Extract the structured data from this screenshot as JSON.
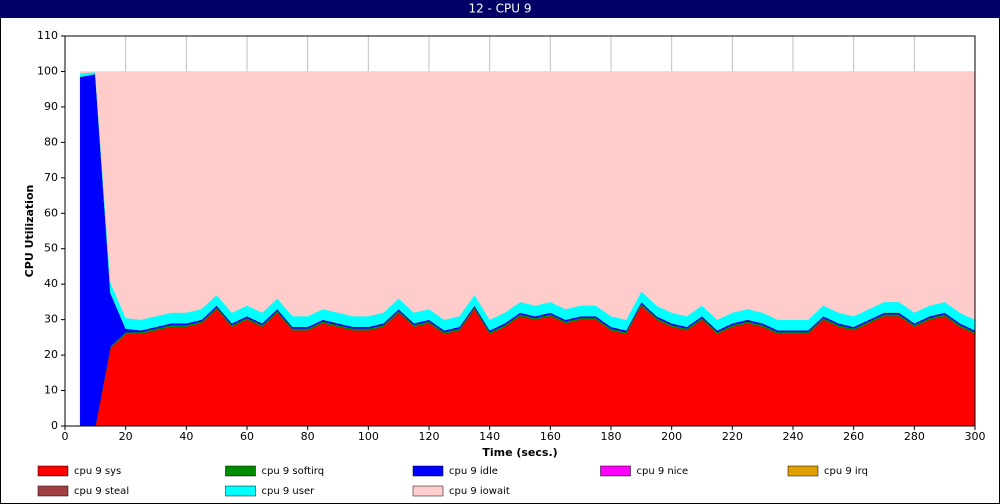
{
  "chart_data": {
    "type": "stacked-area",
    "title": "12 - CPU 9",
    "x_label": "Time (secs.)",
    "y_label": "CPU Utilization",
    "x": [
      5,
      10,
      15,
      20,
      25,
      30,
      35,
      40,
      45,
      50,
      55,
      60,
      65,
      70,
      75,
      80,
      85,
      90,
      95,
      100,
      105,
      110,
      115,
      120,
      125,
      130,
      135,
      140,
      145,
      150,
      155,
      160,
      165,
      170,
      175,
      180,
      185,
      190,
      195,
      200,
      205,
      210,
      215,
      220,
      225,
      230,
      235,
      240,
      245,
      250,
      255,
      260,
      265,
      270,
      275,
      280,
      285,
      290,
      295,
      300
    ],
    "xlim": [
      0,
      300
    ],
    "xticks": [
      0,
      20,
      40,
      60,
      80,
      100,
      120,
      140,
      160,
      180,
      200,
      220,
      240,
      260,
      280,
      300
    ],
    "ylim": [
      0,
      110
    ],
    "yticks": [
      0,
      10,
      20,
      30,
      40,
      50,
      60,
      70,
      80,
      90,
      100,
      110
    ],
    "grid": true,
    "series": [
      {
        "name": "cpu 9 sys",
        "color": "#ff0000",
        "values": [
          0,
          0,
          22,
          26,
          26,
          27,
          28,
          28,
          29,
          33,
          28,
          30,
          28,
          32,
          27,
          27,
          29,
          28,
          27,
          27,
          28,
          32,
          28,
          29,
          26,
          27,
          33,
          26,
          28,
          31,
          30,
          31,
          29,
          30,
          30,
          27,
          26,
          34,
          30,
          28,
          27,
          30,
          26,
          28,
          29,
          28,
          26,
          26,
          26,
          30,
          28,
          27,
          29,
          31,
          31,
          28,
          30,
          31,
          28,
          26
        ]
      },
      {
        "name": "cpu 9 softirq",
        "color": "#008c00",
        "values": [
          0,
          0,
          0.5,
          0.5,
          0.5,
          0.5,
          0.5,
          0.5,
          0.5,
          0.5,
          0.5,
          0.5,
          0.5,
          0.5,
          0.5,
          0.5,
          0.5,
          0.5,
          0.5,
          0.5,
          0.5,
          0.5,
          0.5,
          0.5,
          0.5,
          0.5,
          0.5,
          0.5,
          0.5,
          0.5,
          0.5,
          0.5,
          0.5,
          0.5,
          0.5,
          0.5,
          0.5,
          0.5,
          0.5,
          0.5,
          0.5,
          0.5,
          0.5,
          0.5,
          0.5,
          0.5,
          0.5,
          0.5,
          0.5,
          0.5,
          0.5,
          0.5,
          0.5,
          0.5,
          0.5,
          0.5,
          0.5,
          0.5,
          0.5,
          0.5
        ]
      },
      {
        "name": "cpu 9 idle",
        "color": "#0000ff",
        "values": [
          98.5,
          99.3,
          15,
          1,
          0.5,
          0.5,
          0.5,
          0.5,
          0.5,
          0.5,
          0.5,
          0.5,
          0.5,
          0.5,
          0.5,
          0.5,
          0.5,
          0.5,
          0.5,
          0.5,
          0.5,
          0.5,
          0.5,
          0.5,
          0.5,
          0.5,
          0.5,
          0.5,
          0.5,
          0.5,
          0.5,
          0.5,
          0.5,
          0.5,
          0.5,
          0.5,
          0.5,
          0.5,
          0.5,
          0.5,
          0.5,
          0.5,
          0.5,
          0.5,
          0.5,
          0.5,
          0.5,
          0.5,
          0.5,
          0.5,
          0.5,
          0.5,
          0.5,
          0.5,
          0.5,
          0.5,
          0.5,
          0.5,
          0.5,
          0.5
        ]
      },
      {
        "name": "cpu 9 nice",
        "color": "#ff00ff",
        "values": [
          0,
          0,
          0,
          0,
          0,
          0,
          0,
          0,
          0,
          0,
          0,
          0,
          0,
          0,
          0,
          0,
          0,
          0,
          0,
          0,
          0,
          0,
          0,
          0,
          0,
          0,
          0,
          0,
          0,
          0,
          0,
          0,
          0,
          0,
          0,
          0,
          0,
          0,
          0,
          0,
          0,
          0,
          0,
          0,
          0,
          0,
          0,
          0,
          0,
          0,
          0,
          0,
          0,
          0,
          0,
          0,
          0,
          0,
          0,
          0
        ]
      },
      {
        "name": "cpu 9 irq",
        "color": "#e0a000",
        "values": [
          0,
          0,
          0,
          0,
          0,
          0,
          0,
          0,
          0,
          0,
          0,
          0,
          0,
          0,
          0,
          0,
          0,
          0,
          0,
          0,
          0,
          0,
          0,
          0,
          0,
          0,
          0,
          0,
          0,
          0,
          0,
          0,
          0,
          0,
          0,
          0,
          0,
          0,
          0,
          0,
          0,
          0,
          0,
          0,
          0,
          0,
          0,
          0,
          0,
          0,
          0,
          0,
          0,
          0,
          0,
          0,
          0,
          0,
          0,
          0
        ]
      },
      {
        "name": "cpu 9 steal",
        "color": "#a04040",
        "values": [
          0,
          0,
          0,
          0,
          0,
          0,
          0,
          0,
          0,
          0,
          0,
          0,
          0,
          0,
          0,
          0,
          0,
          0,
          0,
          0,
          0,
          0,
          0,
          0,
          0,
          0,
          0,
          0,
          0,
          0,
          0,
          0,
          0,
          0,
          0,
          0,
          0,
          0,
          0,
          0,
          0,
          0,
          0,
          0,
          0,
          0,
          0,
          0,
          0,
          0,
          0,
          0,
          0,
          0,
          0,
          0,
          0,
          0,
          0,
          0
        ]
      },
      {
        "name": "cpu 9 user",
        "color": "#00ffff",
        "values": [
          1,
          0.5,
          3,
          3,
          3,
          3,
          3,
          3,
          3,
          3,
          3,
          3,
          3,
          3,
          3,
          3,
          3,
          3,
          3,
          3,
          3,
          3,
          3,
          3,
          3,
          3,
          3,
          3,
          3,
          3,
          3,
          3,
          3,
          3,
          3,
          3,
          3,
          3,
          3,
          3,
          3,
          3,
          3,
          3,
          3,
          3,
          3,
          3,
          3,
          3,
          3,
          3,
          3,
          3,
          3,
          3,
          3,
          3,
          3,
          3
        ]
      },
      {
        "name": "cpu 9 iowait",
        "color": "#ffcccc",
        "values": [
          0.5,
          0.2,
          59.5,
          69.5,
          70,
          69,
          68,
          68,
          67,
          63,
          68,
          66,
          68,
          64,
          69,
          69,
          67,
          68,
          69,
          69,
          68,
          64,
          68,
          67,
          70,
          69,
          63,
          70,
          68,
          65,
          66,
          65,
          67,
          66,
          66,
          69,
          70,
          62,
          66,
          68,
          69,
          66,
          70,
          68,
          67,
          68,
          70,
          70,
          70,
          66,
          68,
          69,
          67,
          65,
          65,
          68,
          66,
          65,
          68,
          70
        ]
      }
    ]
  }
}
